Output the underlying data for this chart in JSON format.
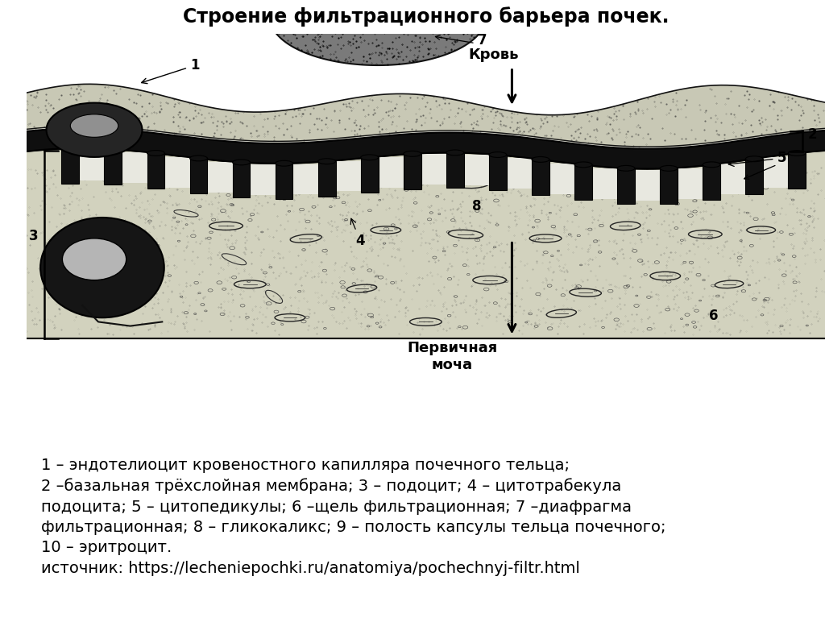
{
  "title": "Строение фильтрационного барьера почек.",
  "title_fontsize": 17,
  "title_fontweight": "bold",
  "sidebar_color": "#5a5a18",
  "background_color": "#FFFFFF",
  "desc_bg_color": "#e0e0cc",
  "description_text": "1 – эндотелиоцит кровеностного капилляра почечного тельца;\n2 –базальная трёхслойная мембрана; 3 – подоцит; 4 – цитотрабекула\nподоцита; 5 – цитопедикулы; 6 –щель фильтрационная; 7 –диафрагма\nфильтрационная; 8 – гликокаликс; 9 – полость капсулы тельца почечного;\n10 – эритроцит.\nисточник: https://lecheniepochki.ru/anatomiya/pochechnyj-filtr.html",
  "desc_fontsize": 14,
  "krov_label": "Кровь",
  "pervichnaya_label": "Первичная\nмоча"
}
